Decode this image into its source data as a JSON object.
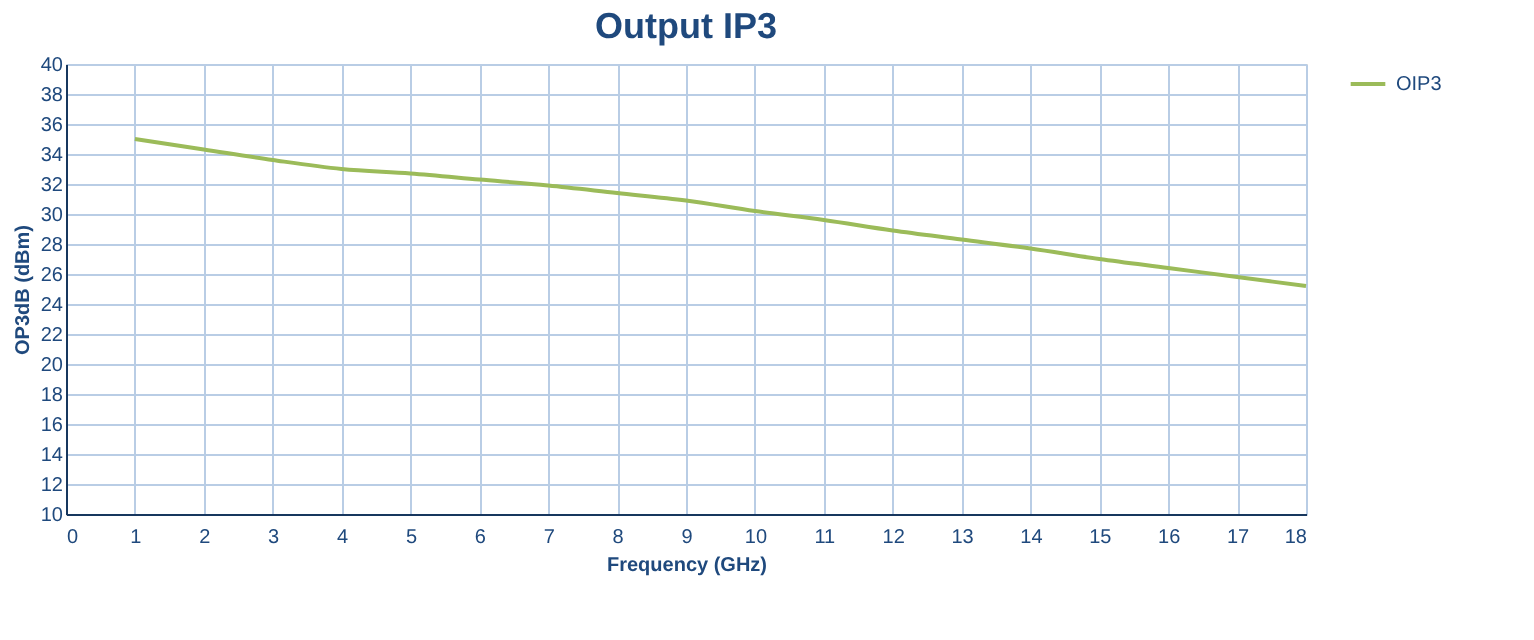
{
  "chart_data": {
    "type": "line",
    "title": "Output IP3",
    "xlabel": "Frequency (GHz)",
    "ylabel": "OP3dB (dBm)",
    "x": [
      1,
      2,
      3,
      4,
      5,
      6,
      7,
      8,
      9,
      10,
      11,
      12,
      13,
      14,
      15,
      16,
      17,
      18
    ],
    "series": [
      {
        "name": "OIP3",
        "color": "#9bbb59",
        "values": [
          35.0,
          34.3,
          33.6,
          33.0,
          32.7,
          32.3,
          31.9,
          31.4,
          30.9,
          30.2,
          29.6,
          28.9,
          28.3,
          27.7,
          27.0,
          26.4,
          25.8,
          25.2
        ]
      }
    ],
    "xlim": [
      0,
      18
    ],
    "xticks": [
      0,
      1,
      2,
      3,
      4,
      5,
      6,
      7,
      8,
      9,
      10,
      11,
      12,
      13,
      14,
      15,
      16,
      17,
      18
    ],
    "ylim": [
      10,
      40
    ],
    "yticks": [
      10,
      12,
      14,
      16,
      18,
      20,
      22,
      24,
      26,
      28,
      30,
      32,
      34,
      36,
      38,
      40
    ],
    "grid": true,
    "legend": "right",
    "marker": "none",
    "line_style": "solid"
  }
}
